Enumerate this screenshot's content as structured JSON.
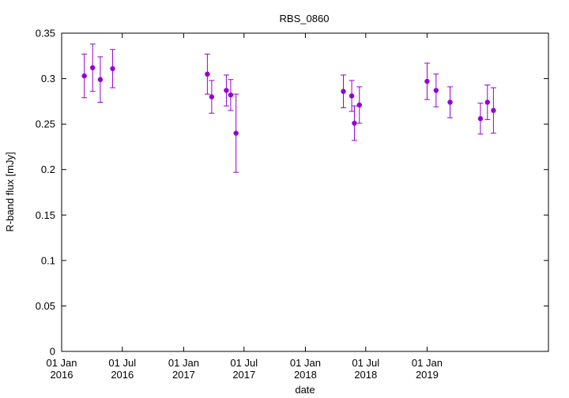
{
  "chart_data": {
    "type": "scatter",
    "title": "RBS_0860",
    "xlabel": "date",
    "ylabel": "R-band flux [mJy]",
    "x_type": "date",
    "xlim": [
      "2016-01-01",
      "2019-12-31"
    ],
    "ylim": [
      0,
      0.35
    ],
    "y_ticks": [
      "0",
      "0.05",
      "0.1",
      "0.15",
      "0.2",
      "0.25",
      "0.3",
      "0.35"
    ],
    "x_ticks": [
      {
        "date": "2016-01-01",
        "line1": "01 Jan",
        "line2": "2016"
      },
      {
        "date": "2016-07-01",
        "line1": "01 Jul",
        "line2": "2016"
      },
      {
        "date": "2017-01-01",
        "line1": "01 Jan",
        "line2": "2017"
      },
      {
        "date": "2017-07-01",
        "line1": "01 Jul",
        "line2": "2017"
      },
      {
        "date": "2018-01-01",
        "line1": "01 Jan",
        "line2": "2018"
      },
      {
        "date": "2018-07-01",
        "line1": "01 Jul",
        "line2": "2018"
      },
      {
        "date": "2019-01-01",
        "line1": "01 Jan",
        "line2": "2019"
      }
    ],
    "grid": false,
    "marker_color": "#9400d3",
    "points": [
      {
        "x": "2016-03-09",
        "y": 0.303,
        "err": 0.024
      },
      {
        "x": "2016-04-03",
        "y": 0.312,
        "err": 0.026
      },
      {
        "x": "2016-04-26",
        "y": 0.299,
        "err": 0.025
      },
      {
        "x": "2016-06-02",
        "y": 0.311,
        "err": 0.021
      },
      {
        "x": "2017-03-13",
        "y": 0.305,
        "err": 0.022
      },
      {
        "x": "2017-03-26",
        "y": 0.28,
        "err": 0.018
      },
      {
        "x": "2017-05-09",
        "y": 0.287,
        "err": 0.017
      },
      {
        "x": "2017-05-22",
        "y": 0.282,
        "err": 0.017
      },
      {
        "x": "2017-06-07",
        "y": 0.24,
        "err": 0.043
      },
      {
        "x": "2018-04-25",
        "y": 0.286,
        "err": 0.018
      },
      {
        "x": "2018-05-20",
        "y": 0.281,
        "err": 0.017
      },
      {
        "x": "2018-05-28",
        "y": 0.251,
        "err": 0.019
      },
      {
        "x": "2018-06-12",
        "y": 0.271,
        "err": 0.02
      },
      {
        "x": "2019-01-01",
        "y": 0.297,
        "err": 0.02
      },
      {
        "x": "2019-01-28",
        "y": 0.287,
        "err": 0.018
      },
      {
        "x": "2019-03-11",
        "y": 0.274,
        "err": 0.017
      },
      {
        "x": "2019-06-10",
        "y": 0.256,
        "err": 0.017
      },
      {
        "x": "2019-07-01",
        "y": 0.274,
        "err": 0.019
      },
      {
        "x": "2019-07-19",
        "y": 0.265,
        "err": 0.025
      }
    ]
  }
}
